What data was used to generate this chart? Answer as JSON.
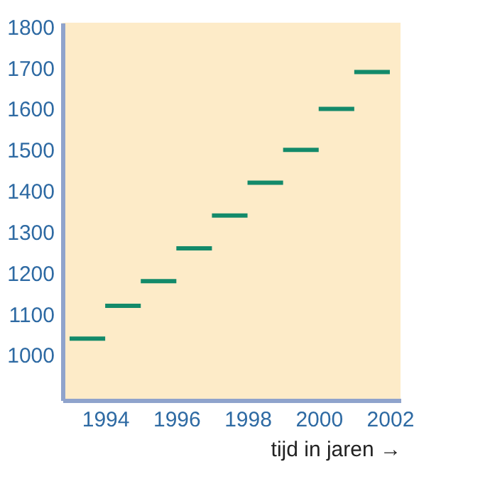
{
  "chart_data": {
    "type": "line",
    "xlabel": "tijd in jaren →",
    "series": [
      {
        "color": "#138a6a",
        "x": [
          1993,
          1994
        ],
        "values": [
          1040,
          1040
        ]
      },
      {
        "color": "#138a6a",
        "x": [
          1994,
          1995
        ],
        "values": [
          1120,
          1120
        ]
      },
      {
        "color": "#138a6a",
        "x": [
          1995,
          1996
        ],
        "values": [
          1180,
          1180
        ]
      },
      {
        "color": "#138a6a",
        "x": [
          1996,
          1997
        ],
        "values": [
          1260,
          1260
        ]
      },
      {
        "color": "#138a6a",
        "x": [
          1997,
          1998
        ],
        "values": [
          1340,
          1340
        ]
      },
      {
        "color": "#138a6a",
        "x": [
          1998,
          1999
        ],
        "values": [
          1420,
          1420
        ]
      },
      {
        "color": "#138a6a",
        "x": [
          1999,
          2000
        ],
        "values": [
          1500,
          1500
        ]
      },
      {
        "color": "#138a6a",
        "x": [
          2000,
          2001
        ],
        "values": [
          1600,
          1600
        ]
      },
      {
        "color": "#138a6a",
        "x": [
          2001,
          2002
        ],
        "values": [
          1690,
          1690
        ]
      }
    ],
    "xlim": [
      1992.8,
      2002.3
    ],
    "xticks": [
      1994,
      1996,
      1998,
      2000,
      2002
    ],
    "ylim": [
      890,
      1810
    ],
    "yticks": [
      1000,
      1100,
      1200,
      1300,
      1400,
      1500,
      1600,
      1700,
      1800
    ],
    "grid": false,
    "marker": "none",
    "line_style": "solid"
  }
}
